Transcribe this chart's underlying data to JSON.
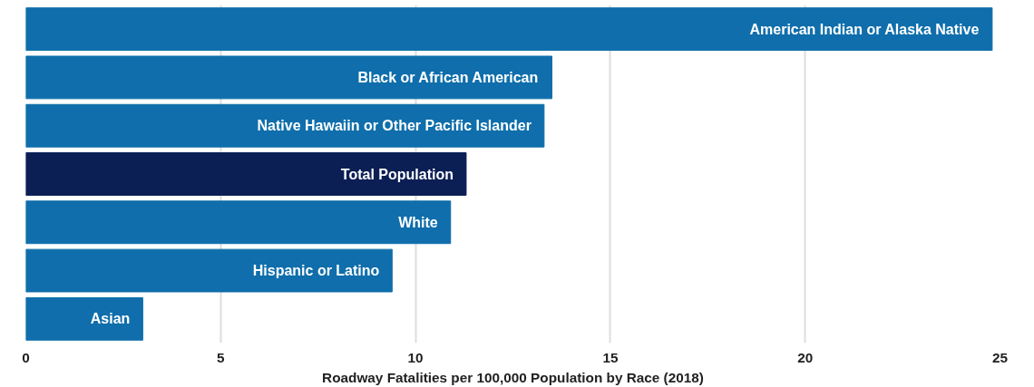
{
  "chart_data": {
    "type": "bar",
    "orientation": "horizontal",
    "xlabel": "Roadway Fatalities per 100,000 Population by Race (2018)",
    "categories": [
      "American Indian or Alaska Native",
      "Black or African American",
      "Native Hawaiin or Other Pacific Islander",
      "Total Population",
      "White",
      "Hispanic or Latino",
      "Asian"
    ],
    "values": [
      24.8,
      13.5,
      13.3,
      11.3,
      10.9,
      9.4,
      3.0
    ],
    "colors": [
      "#0f6eab",
      "#0f6eab",
      "#0f6eab",
      "#0b1f55",
      "#0f6eab",
      "#0f6eab",
      "#0f6eab"
    ],
    "xlim": [
      0,
      25
    ],
    "xticks": [
      0,
      5,
      10,
      15,
      20,
      25
    ],
    "grid": "x",
    "tick_labels": "x"
  }
}
